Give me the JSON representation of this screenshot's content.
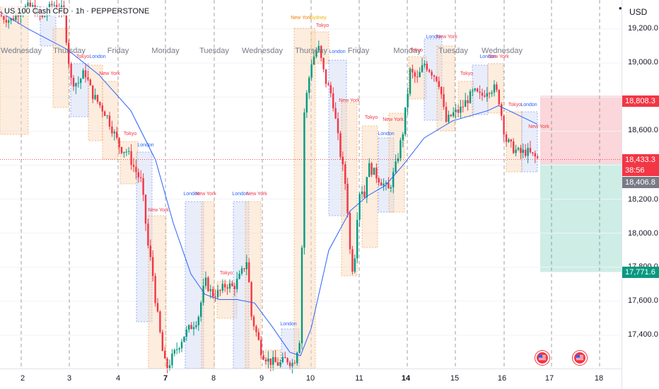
{
  "header": {
    "title": "US 100 Cash CFD · 1h · PEPPERSTONE",
    "currency": "USD",
    "menu_glyph": "•"
  },
  "colors": {
    "up": "#089981",
    "down": "#f23645",
    "ma": "#2962ff",
    "stop_zone": "#f7b4bb",
    "target_zone": "#b2e3d7",
    "asia_box": "#f8d7b9",
    "london_box": "#cfd8f5"
  },
  "price_axis": {
    "ticks": [
      "19,200.0",
      "19,000.0",
      "18,600.0",
      "18,200.0",
      "18,000.0",
      "17,800.0",
      "17,600.0",
      "17,400.0"
    ],
    "tags": {
      "stop": {
        "label": "18,808.3",
        "color": "#f23645"
      },
      "current": {
        "label": "18,433.3",
        "color": "#f23645"
      },
      "countdown": {
        "label": "38:56",
        "color": "#f23645"
      },
      "entry": {
        "label": "18,406.8",
        "color": "#787b86"
      },
      "target": {
        "label": "17,771.6",
        "color": "#089981"
      }
    }
  },
  "date_axis": {
    "ticks": [
      {
        "label": "2",
        "bold": false
      },
      {
        "label": "3",
        "bold": false
      },
      {
        "label": "4",
        "bold": false
      },
      {
        "label": "7",
        "bold": true
      },
      {
        "label": "8",
        "bold": false
      },
      {
        "label": "9",
        "bold": false
      },
      {
        "label": "10",
        "bold": false
      },
      {
        "label": "11",
        "bold": false
      },
      {
        "label": "14",
        "bold": true
      },
      {
        "label": "15",
        "bold": false
      },
      {
        "label": "16",
        "bold": false
      },
      {
        "label": "17",
        "bold": false
      },
      {
        "label": "18",
        "bold": false
      }
    ]
  },
  "day_labels": [
    "Wednesday",
    "Thursday",
    "Friday",
    "Monday",
    "Tuesday",
    "Wednesday",
    "Thursday",
    "Friday",
    "Monday",
    "Tuesday",
    "Wednesday"
  ],
  "session_labels": [
    {
      "text": "Tokyo",
      "color": "#f23645"
    },
    {
      "text": "London",
      "color": "#2962ff"
    },
    {
      "text": "New York",
      "color": "#f23645"
    },
    {
      "text": "Tokyo",
      "color": "#f23645"
    },
    {
      "text": "London",
      "color": "#2962ff"
    },
    {
      "text": "New York",
      "color": "#f23645"
    },
    {
      "text": "London",
      "color": "#2962ff"
    },
    {
      "text": "New York",
      "color": "#f23645"
    },
    {
      "text": "London",
      "color": "#2962ff"
    },
    {
      "text": "New York",
      "color": "#f23645"
    },
    {
      "text": "Tokyo",
      "color": "#f23645"
    },
    {
      "text": "London",
      "color": "#2962ff"
    },
    {
      "text": "New York",
      "color": "#f57c00"
    },
    {
      "text": "Sydney",
      "color": "#f5b400"
    },
    {
      "text": "Tokyo",
      "color": "#f23645"
    },
    {
      "text": "London",
      "color": "#2962ff"
    },
    {
      "text": "New York",
      "color": "#f23645"
    },
    {
      "text": "Tokyo",
      "color": "#f23645"
    },
    {
      "text": "London",
      "color": "#2962ff"
    },
    {
      "text": "New York",
      "color": "#f23645"
    },
    {
      "text": "Tokyo",
      "color": "#f23645"
    },
    {
      "text": "London",
      "color": "#2962ff"
    },
    {
      "text": "New York",
      "color": "#f23645"
    },
    {
      "text": "Tokyo",
      "color": "#f23645"
    },
    {
      "text": "London",
      "color": "#2962ff"
    },
    {
      "text": "New York",
      "color": "#f23645"
    },
    {
      "text": "Tokyo",
      "color": "#f23645"
    },
    {
      "text": "London",
      "color": "#2962ff"
    },
    {
      "text": "New York",
      "color": "#f23645"
    }
  ],
  "events": [
    {
      "icon": "us-flag-icon"
    },
    {
      "icon": "us-flag-icon"
    }
  ],
  "chart_data": {
    "type": "candlestick",
    "timeframe": "1h",
    "ylim": [
      17250,
      19300
    ],
    "moving_average": [
      [
        0,
        19300
      ],
      [
        40,
        19200
      ],
      [
        95,
        19080
      ],
      [
        140,
        18930
      ],
      [
        185,
        18720
      ],
      [
        220,
        18430
      ],
      [
        245,
        18060
      ],
      [
        270,
        17760
      ],
      [
        290,
        17640
      ],
      [
        310,
        17610
      ],
      [
        335,
        17610
      ],
      [
        360,
        17590
      ],
      [
        385,
        17450
      ],
      [
        410,
        17300
      ],
      [
        425,
        17280
      ],
      [
        440,
        17440
      ],
      [
        465,
        17900
      ],
      [
        495,
        18130
      ],
      [
        520,
        18220
      ],
      [
        545,
        18280
      ],
      [
        570,
        18400
      ],
      [
        600,
        18560
      ],
      [
        640,
        18660
      ],
      [
        690,
        18720
      ],
      [
        705,
        18750
      ],
      [
        730,
        18700
      ],
      [
        760,
        18640
      ]
    ],
    "close_path": [
      [
        0,
        19280
      ],
      [
        15,
        19250
      ],
      [
        30,
        19320
      ],
      [
        45,
        19330
      ],
      [
        60,
        19260
      ],
      [
        75,
        19350
      ],
      [
        90,
        19300
      ],
      [
        100,
        18900
      ],
      [
        110,
        18880
      ],
      [
        120,
        18950
      ],
      [
        130,
        18820
      ],
      [
        140,
        18760
      ],
      [
        150,
        18700
      ],
      [
        160,
        18600
      ],
      [
        170,
        18500
      ],
      [
        180,
        18480
      ],
      [
        190,
        18380
      ],
      [
        200,
        18300
      ],
      [
        205,
        18100
      ],
      [
        210,
        17900
      ],
      [
        215,
        17800
      ],
      [
        220,
        17600
      ],
      [
        225,
        17450
      ],
      [
        230,
        17300
      ],
      [
        235,
        17200
      ],
      [
        260,
        17400
      ],
      [
        280,
        17500
      ],
      [
        290,
        17720
      ],
      [
        300,
        17640
      ],
      [
        310,
        17650
      ],
      [
        320,
        17700
      ],
      [
        330,
        17680
      ],
      [
        340,
        17750
      ],
      [
        350,
        17850
      ],
      [
        355,
        17520
      ],
      [
        360,
        17450
      ],
      [
        370,
        17300
      ],
      [
        380,
        17250
      ],
      [
        395,
        17230
      ],
      [
        405,
        17260
      ],
      [
        415,
        17230
      ],
      [
        425,
        17400
      ],
      [
        430,
        18700
      ],
      [
        440,
        19000
      ],
      [
        450,
        19100
      ],
      [
        460,
        18900
      ],
      [
        470,
        18800
      ],
      [
        480,
        18500
      ],
      [
        490,
        18250
      ],
      [
        495,
        17900
      ],
      [
        500,
        17750
      ],
      [
        505,
        18100
      ],
      [
        510,
        18300
      ],
      [
        515,
        18200
      ],
      [
        520,
        18400
      ],
      [
        530,
        18350
      ],
      [
        540,
        18300
      ],
      [
        550,
        18250
      ],
      [
        560,
        18400
      ],
      [
        570,
        18600
      ],
      [
        580,
        18950
      ],
      [
        590,
        18900
      ],
      [
        600,
        19000
      ],
      [
        610,
        18950
      ],
      [
        620,
        18900
      ],
      [
        625,
        18800
      ],
      [
        630,
        18650
      ],
      [
        640,
        18700
      ],
      [
        650,
        18720
      ],
      [
        660,
        18780
      ],
      [
        670,
        18830
      ],
      [
        680,
        18800
      ],
      [
        690,
        18850
      ],
      [
        700,
        18850
      ],
      [
        705,
        18800
      ],
      [
        715,
        18550
      ],
      [
        725,
        18500
      ],
      [
        735,
        18470
      ],
      [
        745,
        18480
      ],
      [
        755,
        18450
      ],
      [
        762,
        18433
      ]
    ],
    "current_price": 18433.3,
    "position": {
      "stop": 18808.3,
      "entry": 18406.8,
      "target": 17771.6
    }
  }
}
